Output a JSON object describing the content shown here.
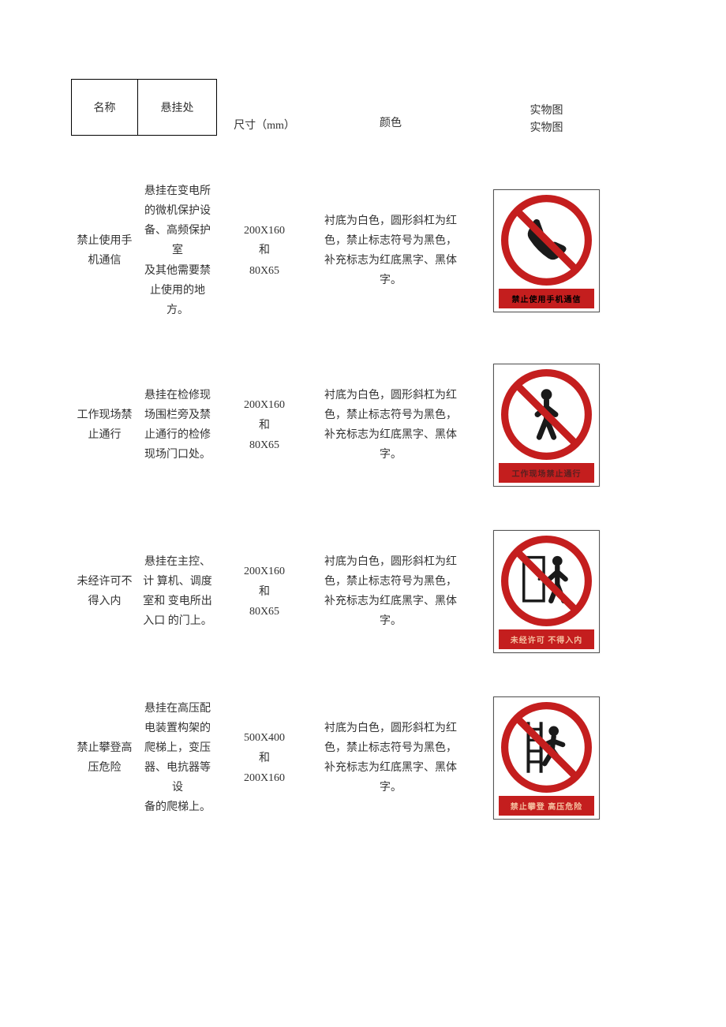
{
  "headers": {
    "name": "名称",
    "location": "悬挂处",
    "size": "尺寸（mm）",
    "color": "颜色",
    "image": "实物图\n实物图"
  },
  "common_color_desc": "衬底为白色，圆形斜杠为红色，禁止标志符号为黑色，补充标志为红底黑字、黑体字。",
  "sign_colors": {
    "ring": "#c41e1e",
    "slash": "#c41e1e",
    "symbol": "#1a1a1a",
    "bg": "#ffffff",
    "label_bg": "#c41e1e"
  },
  "rows": [
    {
      "name": "禁止使用手机通信",
      "location": "悬挂在变电所的微机保护设备、高频保护室\n及其他需要禁止使用的地方。",
      "size": "200X160\n和\n80X65",
      "sign_label": "禁止使用手机通信",
      "icon": "phone"
    },
    {
      "name": "工作现场禁止通行",
      "location": "悬挂在检修现场围栏旁及禁止通行的检修现场门口处。",
      "size": "200X160\n和\n80X65",
      "sign_label": "工作现场禁止通行",
      "icon": "pedestrian"
    },
    {
      "name": "未经许可不得入内",
      "location": "悬挂在主控、计 算机、调度室和 变电所出入口 的门上。",
      "size": "200X160\n和\n80X65",
      "sign_label": "未经许可 不得入内",
      "icon": "door-person"
    },
    {
      "name": "禁止攀登高压危险",
      "location": "悬挂在高压配电装置构架的爬梯上，变压器、电抗器等设\n备的爬梯上。",
      "size": "500X400\n和\n200X160",
      "sign_label": "禁止攀登 高压危险",
      "icon": "ladder"
    }
  ]
}
